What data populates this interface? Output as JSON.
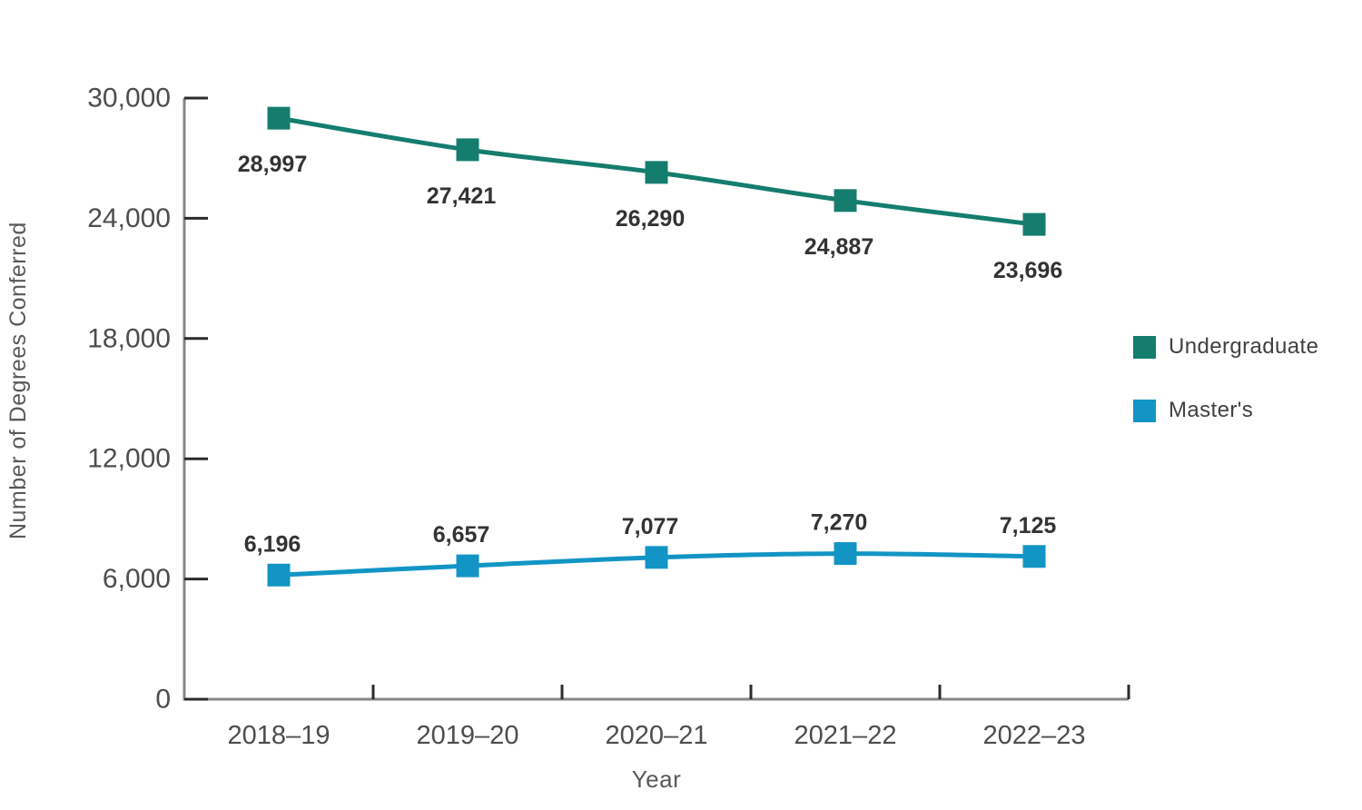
{
  "chart_data": {
    "type": "line",
    "categories": [
      "2018–19",
      "2019–20",
      "2020–21",
      "2021–22",
      "2022–23"
    ],
    "series": [
      {
        "name": "Undergraduate",
        "key": "undergraduate",
        "color": "#157D6E",
        "values": [
          28997,
          27421,
          26290,
          24887,
          23696
        ],
        "labels": [
          "28,997",
          "27,421",
          "26,290",
          "24,887",
          "23,696"
        ],
        "label_position": "below"
      },
      {
        "name": "Master's",
        "key": "masters",
        "color": "#1295C5",
        "values": [
          6196,
          6657,
          7077,
          7270,
          7125
        ],
        "labels": [
          "6,196",
          "6,657",
          "7,077",
          "7,270",
          "7,125"
        ],
        "label_position": "above"
      }
    ],
    "xlabel": "Year",
    "ylabel": "Number of Degrees Conferred",
    "ylim": [
      0,
      30000
    ],
    "ytick_step": 6000,
    "ytick_labels": [
      "0",
      "6,000",
      "12,000",
      "18,000",
      "24,000",
      "30,000"
    ],
    "grid": false,
    "legend_position": "right",
    "marker": "square",
    "colors": {
      "axis_line": "#85878A",
      "tick": "#2B2B2D",
      "tick_label": "#4D4D4F",
      "axis_title": "#58595B",
      "data_label": "#333333",
      "background": "#FFFFFF"
    }
  }
}
